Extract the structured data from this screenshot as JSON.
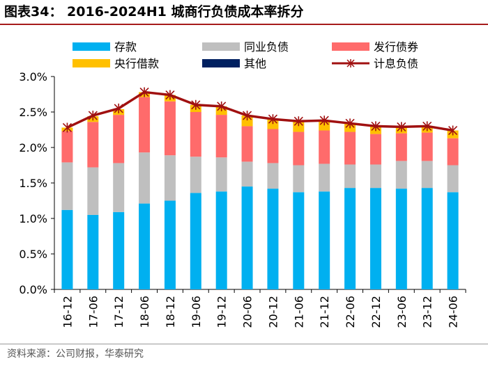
{
  "header": {
    "title": "图表34：  2016-2024H1 城商行负债成本率拆分"
  },
  "footer": {
    "source": "资料来源：公司财报，华泰研究"
  },
  "chart_data": {
    "type": "bar",
    "stacked": true,
    "title": "2016-2024H1 城商行负债成本率拆分",
    "xlabel": "",
    "ylabel": "",
    "ylim": [
      0.0,
      3.0
    ],
    "yticks": [
      "0.0%",
      "0.5%",
      "1.0%",
      "1.5%",
      "2.0%",
      "2.5%",
      "3.0%"
    ],
    "grid": false,
    "legend_position": "top",
    "categories": [
      "16-12",
      "17-06",
      "17-12",
      "18-06",
      "18-12",
      "19-06",
      "19-12",
      "20-06",
      "20-12",
      "21-06",
      "21-12",
      "22-06",
      "22-12",
      "23-06",
      "23-12",
      "24-06"
    ],
    "series": [
      {
        "name": "存款",
        "kind": "bar",
        "color": "#00b0f0",
        "values": [
          1.12,
          1.05,
          1.09,
          1.21,
          1.25,
          1.36,
          1.38,
          1.45,
          1.42,
          1.37,
          1.38,
          1.43,
          1.43,
          1.42,
          1.43,
          1.37
        ]
      },
      {
        "name": "同业负债",
        "kind": "bar",
        "color": "#bfbfbf",
        "values": [
          0.67,
          0.67,
          0.69,
          0.72,
          0.64,
          0.51,
          0.48,
          0.35,
          0.36,
          0.38,
          0.39,
          0.33,
          0.33,
          0.39,
          0.38,
          0.38
        ]
      },
      {
        "name": "发行债券",
        "kind": "bar",
        "color": "#ff6b6b",
        "values": [
          0.44,
          0.64,
          0.68,
          0.78,
          0.76,
          0.63,
          0.6,
          0.5,
          0.48,
          0.47,
          0.47,
          0.46,
          0.43,
          0.39,
          0.4,
          0.38
        ]
      },
      {
        "name": "央行借款",
        "kind": "bar",
        "color": "#ffc000",
        "values": [
          0.05,
          0.08,
          0.08,
          0.07,
          0.09,
          0.1,
          0.12,
          0.15,
          0.14,
          0.15,
          0.14,
          0.12,
          0.11,
          0.09,
          0.09,
          0.11
        ]
      },
      {
        "name": "其他",
        "kind": "bar",
        "color": "#002060",
        "values": [
          0.0,
          0.0,
          0.0,
          0.0,
          0.0,
          0.0,
          0.0,
          0.0,
          0.0,
          0.0,
          0.0,
          0.0,
          0.0,
          0.0,
          0.0,
          0.0
        ]
      },
      {
        "name": "计息负债",
        "kind": "line",
        "color": "#a01010",
        "marker": "x-star",
        "values": [
          2.28,
          2.45,
          2.55,
          2.78,
          2.74,
          2.6,
          2.58,
          2.45,
          2.4,
          2.37,
          2.38,
          2.34,
          2.3,
          2.29,
          2.3,
          2.24
        ]
      }
    ]
  }
}
